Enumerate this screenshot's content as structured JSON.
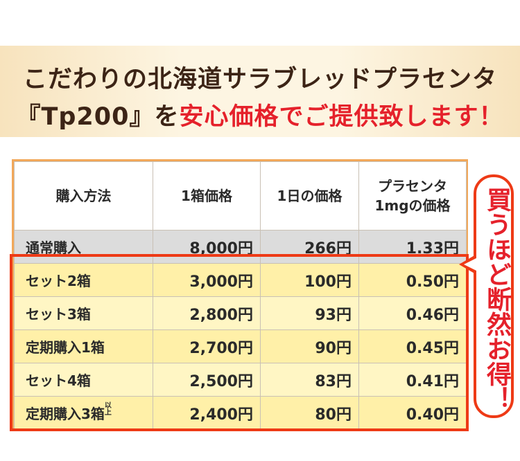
{
  "headline": {
    "line1": "こだわりの北海道サラブレッドプラセンタ",
    "line2_prefix": "『Tp200』を",
    "line2_highlight": "安心価格でご提供致します！"
  },
  "table": {
    "headers": [
      "購入方法",
      "1箱価格",
      "1日の価格",
      "プラセンタ",
      "1mgの価格"
    ],
    "rows": [
      {
        "name": "通常購入",
        "sup": "",
        "box": "8,000円",
        "day": "266円",
        "mg": "1.33円"
      },
      {
        "name": "セット2箱",
        "sup": "",
        "box": "3,000円",
        "day": "100円",
        "mg": "0.50円"
      },
      {
        "name": "セット3箱",
        "sup": "",
        "box": "2,800円",
        "day": "93円",
        "mg": "0.46円"
      },
      {
        "name": "定期購入1箱",
        "sup": "",
        "box": "2,700円",
        "day": "90円",
        "mg": "0.45円"
      },
      {
        "name": "セット4箱",
        "sup": "",
        "box": "2,500円",
        "day": "83円",
        "mg": "0.41円"
      },
      {
        "name": "定期購入3箱",
        "sup": "以上",
        "box": "2,400円",
        "day": "80円",
        "mg": "0.40円"
      }
    ]
  },
  "callout": "買うほど断然お得！",
  "colors": {
    "accent_red": "#e5212b",
    "frame_red": "#ee3a16",
    "brown": "#3c2416",
    "highlight": "#fff6c4"
  }
}
